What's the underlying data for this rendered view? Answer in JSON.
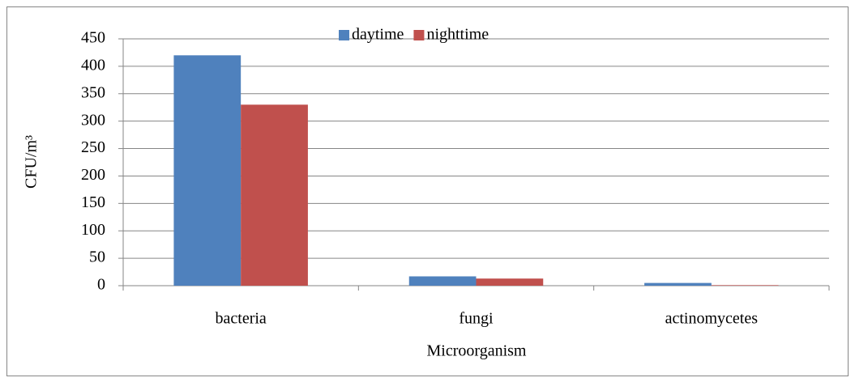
{
  "chart_data": {
    "type": "bar",
    "categories": [
      "bacteria",
      "fungi",
      "actinomycetes"
    ],
    "series": [
      {
        "name": "daytime",
        "color": "#4f81bd",
        "values": [
          420,
          17,
          5
        ]
      },
      {
        "name": "nighttime",
        "color": "#c0504d",
        "values": [
          330,
          13,
          1
        ]
      }
    ],
    "x_label": "Microorganism",
    "y_label": "CFU/m³",
    "ylim": [
      0,
      450
    ],
    "yticks": [
      0,
      50,
      100,
      150,
      200,
      250,
      300,
      350,
      400,
      450
    ],
    "grid": true,
    "legend": "top"
  }
}
